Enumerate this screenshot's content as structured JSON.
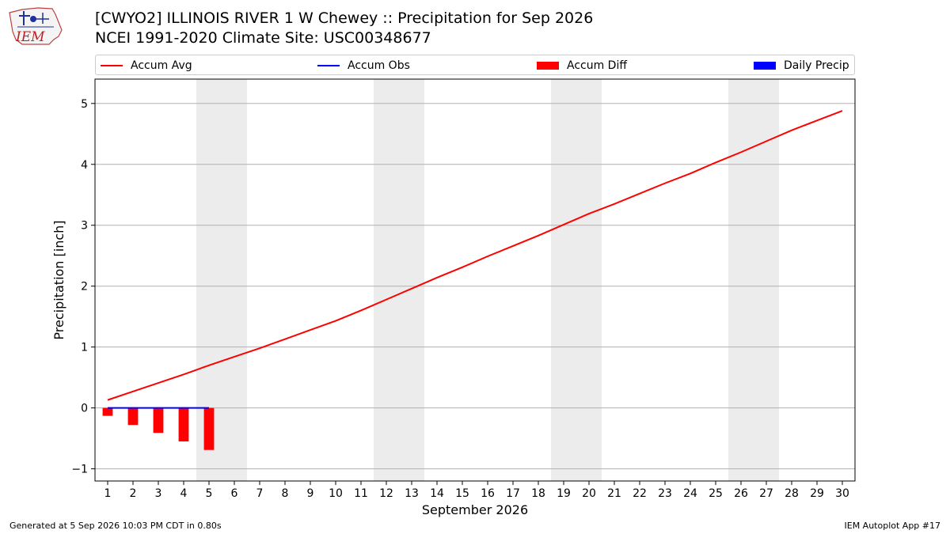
{
  "header": {
    "title_line1": "[CWYO2] ILLINOIS RIVER 1 W Chewey :: Precipitation for Sep 2026",
    "title_line2": "NCEI 1991-2020 Climate Site: USC00348677",
    "logo_text": "IEM"
  },
  "legend": {
    "accum_avg": "Accum Avg",
    "accum_obs": "Accum Obs",
    "accum_diff": "Accum Diff",
    "daily_precip": "Daily Precip"
  },
  "colors": {
    "accum_avg": "#ff0000",
    "accum_obs": "#0000ff",
    "accum_diff": "#ff0000",
    "daily_precip": "#0000ff",
    "weekend_shade": "#ececec",
    "grid": "#b0b0b0"
  },
  "footer": {
    "generated": "Generated at 5 Sep 2026 10:03 PM CDT in 0.80s",
    "app": "IEM Autoplot App #17"
  },
  "chart_data": {
    "type": "line",
    "xlabel": "September 2026",
    "ylabel": "Precipitation [inch]",
    "xlim": [
      0.5,
      30.5
    ],
    "ylim": [
      -1.2,
      5.4
    ],
    "yticks": [
      -1,
      0,
      1,
      2,
      3,
      4,
      5
    ],
    "xticks": [
      1,
      2,
      3,
      4,
      5,
      6,
      7,
      8,
      9,
      10,
      11,
      12,
      13,
      14,
      15,
      16,
      17,
      18,
      19,
      20,
      21,
      22,
      23,
      24,
      25,
      26,
      27,
      28,
      29,
      30
    ],
    "grid": "horizontal",
    "legend_position": "top",
    "weekend_shading": [
      [
        5,
        6
      ],
      [
        12,
        13
      ],
      [
        19,
        20
      ],
      [
        26,
        27
      ]
    ],
    "series": [
      {
        "name": "Accum Avg",
        "kind": "line",
        "x": [
          1,
          2,
          3,
          4,
          5,
          6,
          7,
          8,
          9,
          10,
          11,
          12,
          13,
          14,
          15,
          16,
          17,
          18,
          19,
          20,
          21,
          22,
          23,
          24,
          25,
          26,
          27,
          28,
          29,
          30
        ],
        "values": [
          0.13,
          0.27,
          0.41,
          0.55,
          0.7,
          0.84,
          0.98,
          1.13,
          1.28,
          1.43,
          1.6,
          1.78,
          1.96,
          2.14,
          2.31,
          2.49,
          2.66,
          2.83,
          3.01,
          3.19,
          3.35,
          3.52,
          3.69,
          3.85,
          4.03,
          4.2,
          4.38,
          4.56,
          4.72,
          4.88
        ]
      },
      {
        "name": "Accum Obs",
        "kind": "line",
        "x": [
          1,
          2,
          3,
          4,
          5
        ],
        "values": [
          0,
          0,
          0,
          0,
          0
        ]
      },
      {
        "name": "Accum Diff",
        "kind": "bar",
        "x": [
          1,
          2,
          3,
          4,
          5
        ],
        "values": [
          -0.13,
          -0.28,
          -0.41,
          -0.55,
          -0.69
        ]
      },
      {
        "name": "Daily Precip",
        "kind": "bar",
        "x": [
          1,
          2,
          3,
          4,
          5
        ],
        "values": [
          0,
          0,
          0,
          0,
          0
        ]
      }
    ]
  }
}
